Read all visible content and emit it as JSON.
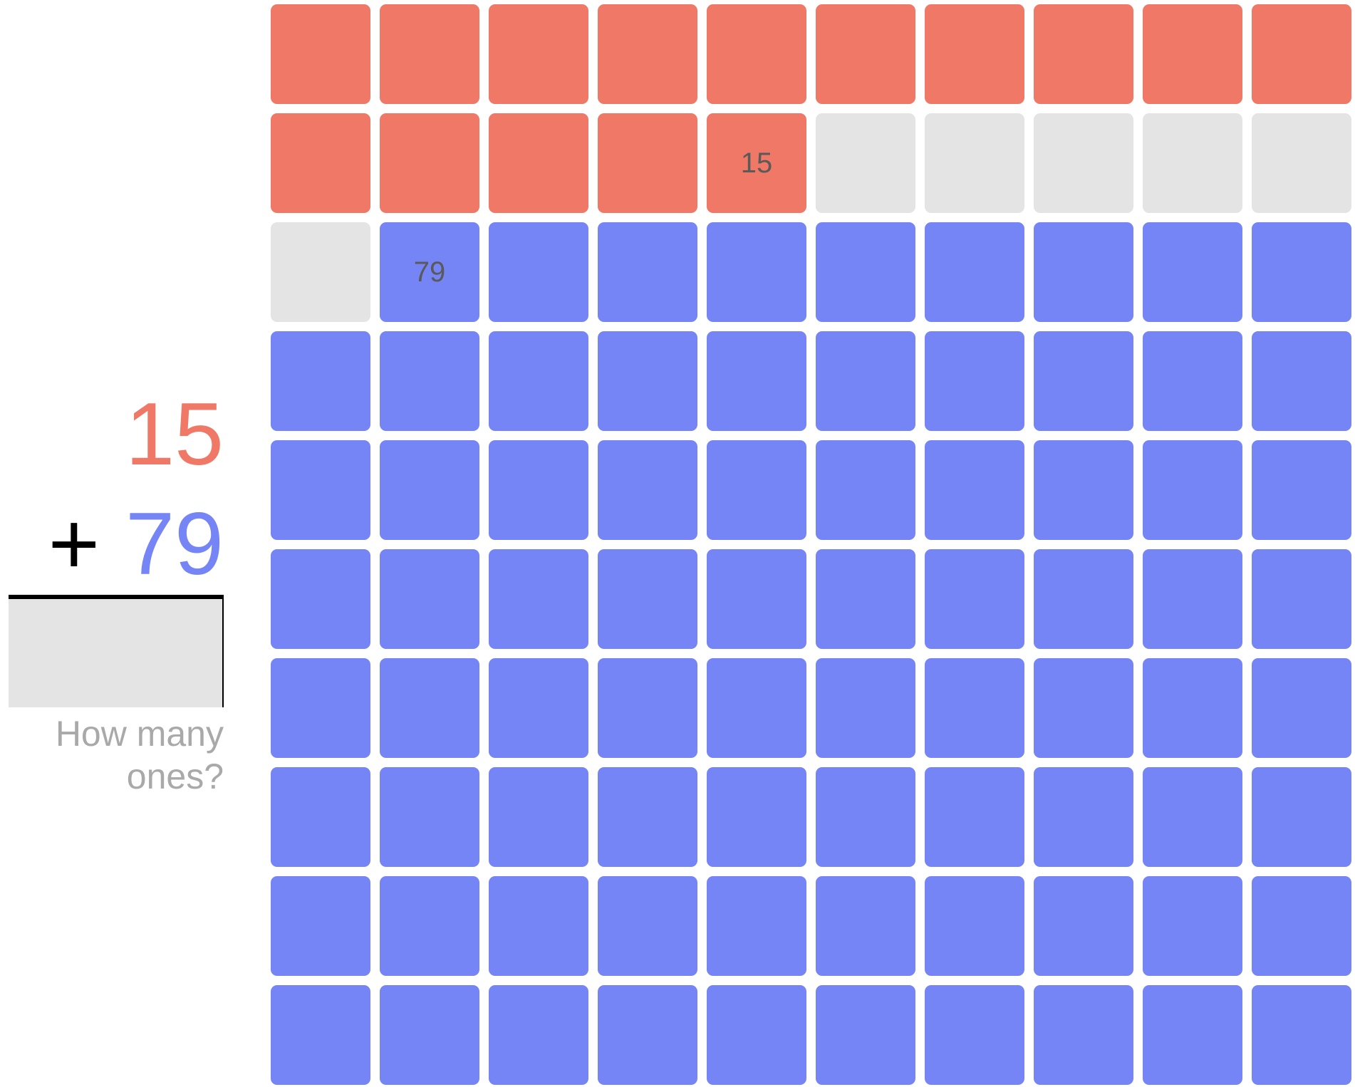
{
  "problem": {
    "addend_a": "15",
    "operator": "+",
    "addend_b": "79",
    "answer_value": "",
    "prompt_line1": "How many",
    "prompt_line2": "ones?"
  },
  "grid": {
    "columns": 10,
    "rows": 10,
    "count_a": 15,
    "gap_cells": 6,
    "count_b": 79,
    "label_a": "15",
    "label_b": "79"
  },
  "colors": {
    "addend_a": "#f07866",
    "addend_b": "#7585f6",
    "empty_cell": "#e4e4e4",
    "prompt_text": "#a9a9a9"
  }
}
